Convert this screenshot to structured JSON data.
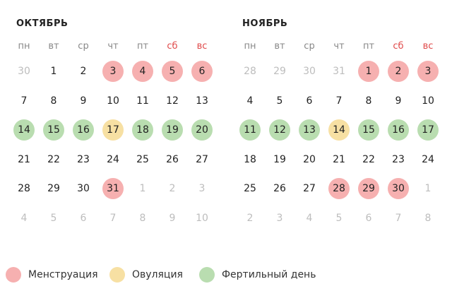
{
  "colors": {
    "menstruation": "#f6b0b0",
    "ovulation": "#f7e0a3",
    "fertile": "#b9ddb0",
    "weekend_text": "#e04b4b",
    "muted_text": "#bdbdbd"
  },
  "weekdays": [
    "пн",
    "вт",
    "ср",
    "чт",
    "пт",
    "сб",
    "вс"
  ],
  "weekend_indices": [
    5,
    6
  ],
  "months": [
    {
      "title": "ОКТЯБРЬ",
      "weeks": [
        [
          {
            "d": "30",
            "m": true
          },
          {
            "d": "1"
          },
          {
            "d": "2"
          },
          {
            "d": "3",
            "t": "menstruation"
          },
          {
            "d": "4",
            "t": "menstruation"
          },
          {
            "d": "5",
            "t": "menstruation"
          },
          {
            "d": "6",
            "t": "menstruation"
          }
        ],
        [
          {
            "d": "7"
          },
          {
            "d": "8"
          },
          {
            "d": "9"
          },
          {
            "d": "10"
          },
          {
            "d": "11"
          },
          {
            "d": "12"
          },
          {
            "d": "13"
          }
        ],
        [
          {
            "d": "14",
            "t": "fertile"
          },
          {
            "d": "15",
            "t": "fertile"
          },
          {
            "d": "16",
            "t": "fertile"
          },
          {
            "d": "17",
            "t": "ovulation"
          },
          {
            "d": "18",
            "t": "fertile"
          },
          {
            "d": "19",
            "t": "fertile"
          },
          {
            "d": "20",
            "t": "fertile"
          }
        ],
        [
          {
            "d": "21"
          },
          {
            "d": "22"
          },
          {
            "d": "23"
          },
          {
            "d": "24"
          },
          {
            "d": "25"
          },
          {
            "d": "26"
          },
          {
            "d": "27"
          }
        ],
        [
          {
            "d": "28"
          },
          {
            "d": "29"
          },
          {
            "d": "30"
          },
          {
            "d": "31",
            "t": "menstruation"
          },
          {
            "d": "1",
            "m": true
          },
          {
            "d": "2",
            "m": true
          },
          {
            "d": "3",
            "m": true
          }
        ],
        [
          {
            "d": "4",
            "m": true
          },
          {
            "d": "5",
            "m": true
          },
          {
            "d": "6",
            "m": true
          },
          {
            "d": "7",
            "m": true
          },
          {
            "d": "8",
            "m": true
          },
          {
            "d": "9",
            "m": true
          },
          {
            "d": "10",
            "m": true
          }
        ]
      ]
    },
    {
      "title": "НОЯБРЬ",
      "weeks": [
        [
          {
            "d": "28",
            "m": true
          },
          {
            "d": "29",
            "m": true
          },
          {
            "d": "30",
            "m": true
          },
          {
            "d": "31",
            "m": true
          },
          {
            "d": "1",
            "t": "menstruation"
          },
          {
            "d": "2",
            "t": "menstruation"
          },
          {
            "d": "3",
            "t": "menstruation"
          }
        ],
        [
          {
            "d": "4"
          },
          {
            "d": "5"
          },
          {
            "d": "6"
          },
          {
            "d": "7"
          },
          {
            "d": "8"
          },
          {
            "d": "9"
          },
          {
            "d": "10"
          }
        ],
        [
          {
            "d": "11",
            "t": "fertile"
          },
          {
            "d": "12",
            "t": "fertile"
          },
          {
            "d": "13",
            "t": "fertile"
          },
          {
            "d": "14",
            "t": "ovulation"
          },
          {
            "d": "15",
            "t": "fertile"
          },
          {
            "d": "16",
            "t": "fertile"
          },
          {
            "d": "17",
            "t": "fertile"
          }
        ],
        [
          {
            "d": "18"
          },
          {
            "d": "19"
          },
          {
            "d": "20"
          },
          {
            "d": "21"
          },
          {
            "d": "22"
          },
          {
            "d": "23"
          },
          {
            "d": "24"
          }
        ],
        [
          {
            "d": "25"
          },
          {
            "d": "26"
          },
          {
            "d": "27"
          },
          {
            "d": "28",
            "t": "menstruation"
          },
          {
            "d": "29",
            "t": "menstruation"
          },
          {
            "d": "30",
            "t": "menstruation"
          },
          {
            "d": "1",
            "m": true
          }
        ],
        [
          {
            "d": "2",
            "m": true
          },
          {
            "d": "3",
            "m": true
          },
          {
            "d": "4",
            "m": true
          },
          {
            "d": "5",
            "m": true
          },
          {
            "d": "6",
            "m": true
          },
          {
            "d": "7",
            "m": true
          },
          {
            "d": "8",
            "m": true
          }
        ]
      ]
    }
  ],
  "legend": [
    {
      "key": "menstruation",
      "label": "Менструация"
    },
    {
      "key": "ovulation",
      "label": "Овуляция"
    },
    {
      "key": "fertile",
      "label": "Фертильный день"
    }
  ]
}
